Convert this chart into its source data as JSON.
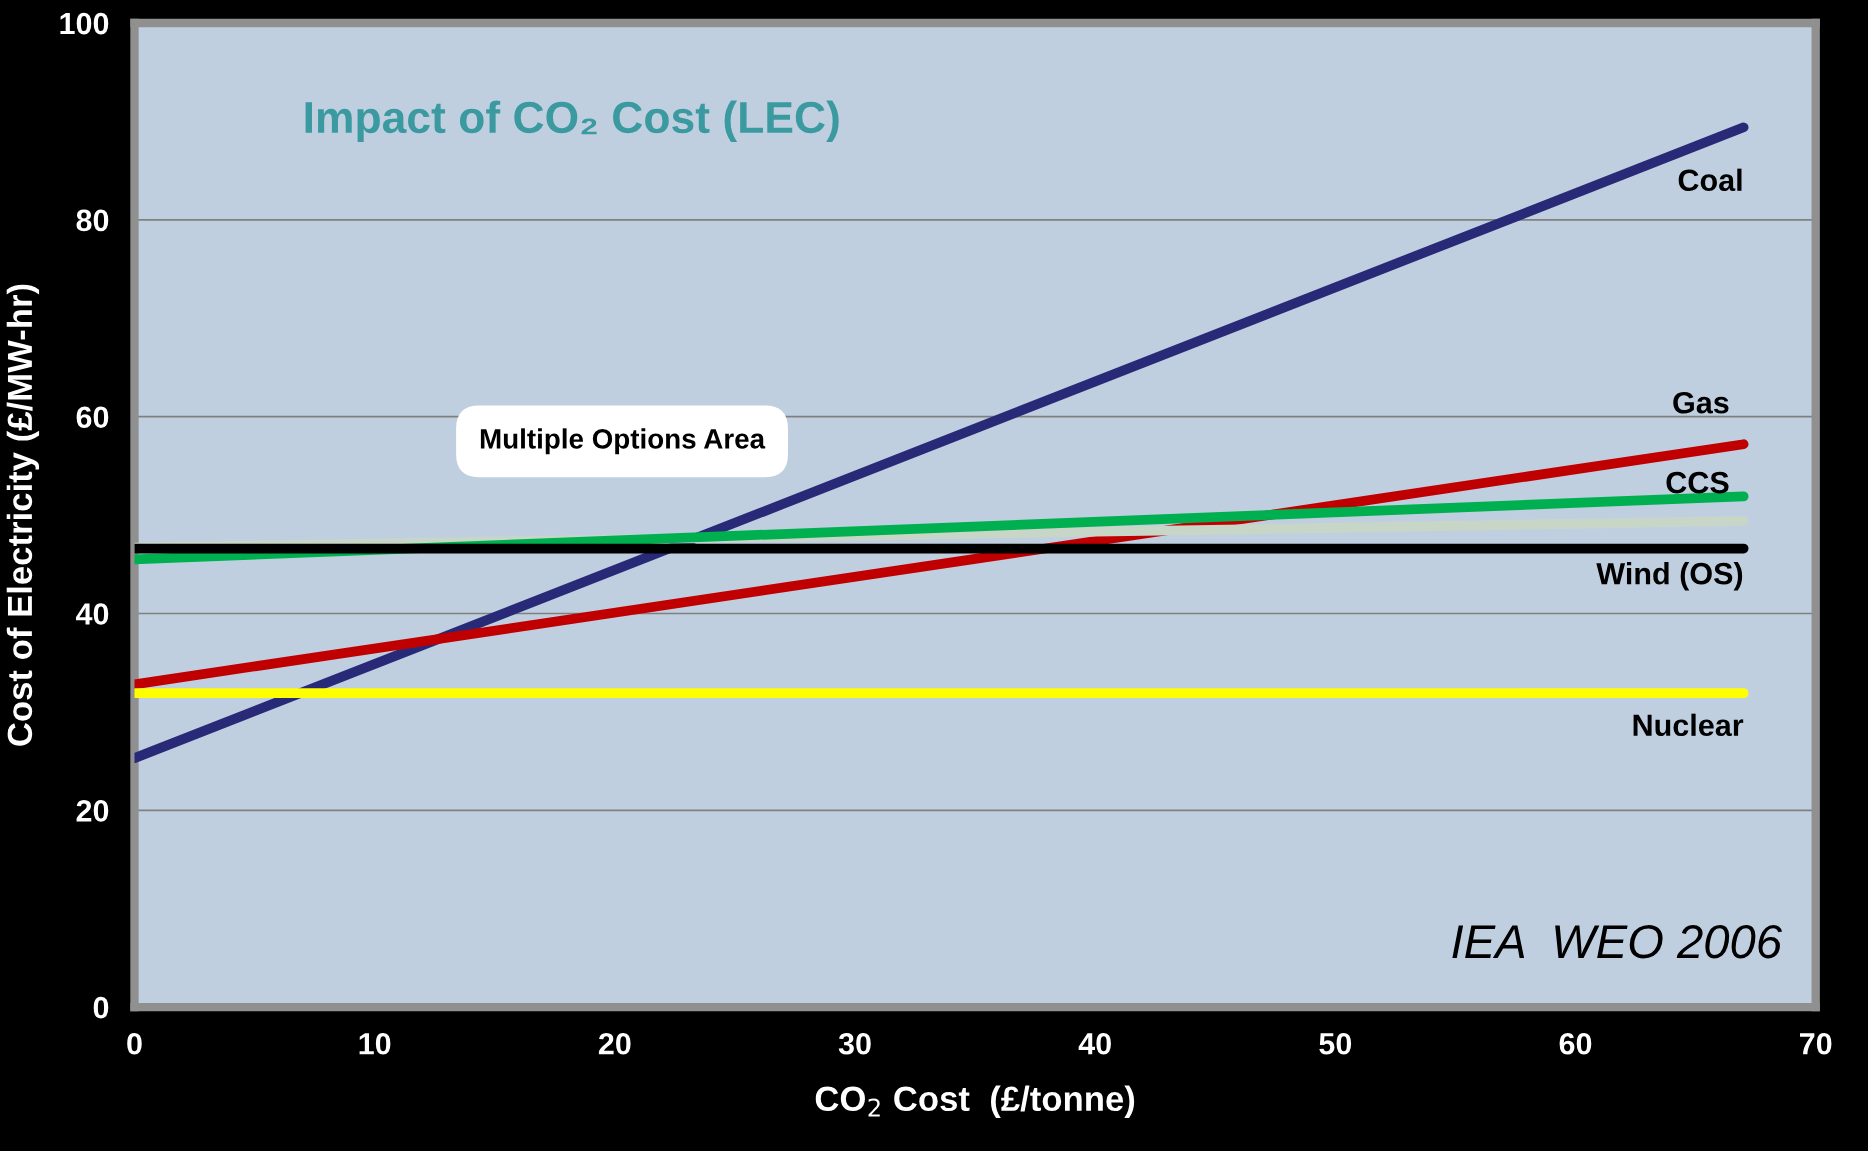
{
  "chart_data": {
    "type": "line",
    "title": "Impact of CO₂ Cost (LEC)",
    "xlabel": "CO$_{2}$ Cost  (£/tonne)",
    "ylabel": "Cost of Electricity (£/MW-hr)",
    "x": [
      0,
      67
    ],
    "series": [
      {
        "name": "Coal",
        "color": "#282a78",
        "values": [
          25.3,
          89.4
        ]
      },
      {
        "name": "Gas",
        "color": "#c00000",
        "values": [
          32.8,
          57.2
        ]
      },
      {
        "color": "#c8d6c8",
        "values": [
          46.7,
          49.4
        ]
      },
      {
        "name": "CCS",
        "color": "#00b050",
        "values": [
          45.5,
          51.9
        ]
      },
      {
        "name": "Wind (OS)",
        "color": "#000000",
        "values": [
          46.6,
          46.6
        ]
      },
      {
        "name": "Nuclear",
        "color": "#ffff00",
        "values": [
          31.9,
          31.9
        ]
      }
    ],
    "xlim": [
      0,
      70
    ],
    "xticks": [
      0,
      10,
      20,
      30,
      40,
      50,
      60,
      70
    ],
    "ylim": [
      0,
      100
    ],
    "yticks": [
      0,
      20,
      40,
      60,
      80,
      100
    ],
    "grid": "y",
    "legend": false,
    "marker": "none",
    "line_style": "solid",
    "annotations": [
      "Multiple Options Area",
      "IEA  WEO 2006"
    ]
  }
}
